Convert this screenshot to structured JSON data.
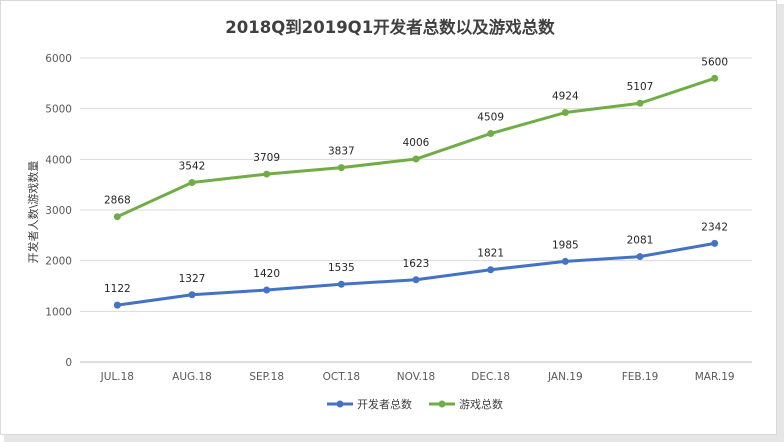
{
  "chart_data": {
    "type": "line",
    "title": "2018Q到2019Q1开发者总数以及游戏总数",
    "xlabel": "",
    "ylabel": "开发者人数\\游戏数量",
    "categories": [
      "JUL.18",
      "AUG.18",
      "SEP.18",
      "OCT.18",
      "NOV.18",
      "DEC.18",
      "JAN.19",
      "FEB.19",
      "MAR.19"
    ],
    "ylim": [
      0,
      6000
    ],
    "yticks": [
      0,
      1000,
      2000,
      3000,
      4000,
      5000,
      6000
    ],
    "grid": true,
    "legend_position": "bottom",
    "series": [
      {
        "name": "开发者总数",
        "color": "#4472c4",
        "values": [
          1122,
          1327,
          1420,
          1535,
          1623,
          1821,
          1985,
          2081,
          2342
        ],
        "labels": [
          "1122",
          "1327",
          "1420",
          "1535",
          "1623",
          "1821",
          "1985",
          "2081",
          "2342"
        ]
      },
      {
        "name": "游戏总数",
        "color": "#70ad47",
        "values": [
          2868,
          3542,
          3709,
          3837,
          4006,
          4509,
          4924,
          5107,
          5600
        ],
        "labels": [
          "2868",
          "3542",
          "3709",
          "3837",
          "4006",
          "4509",
          "4924",
          "5107",
          "5600"
        ]
      }
    ]
  }
}
